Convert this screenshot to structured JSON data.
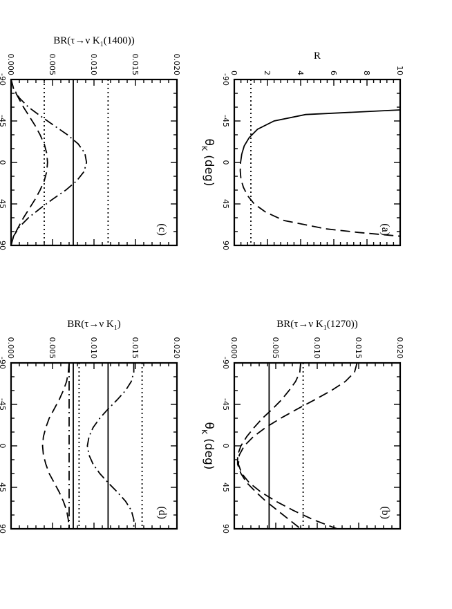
{
  "chart_data": [
    {
      "panel": "(a)",
      "type": "line",
      "xlabel": "θ",
      "xlabel_sub": "K",
      "xlabel_unit": "(deg)",
      "ylabel": "R",
      "xlim": [
        -90,
        90
      ],
      "ylim": [
        0,
        10
      ],
      "xticks": [
        -90,
        -45,
        0,
        45,
        90
      ],
      "yticks": [
        0,
        2,
        4,
        6,
        8,
        10
      ],
      "ytick_labels": [
        "0",
        "2",
        "4",
        "6",
        "8",
        "10"
      ],
      "series": [
        {
          "style": "solid",
          "x": [
            -57,
            -52,
            -45,
            -36,
            -27,
            -18,
            -9
          ],
          "y": [
            10,
            4.3,
            2.4,
            1.4,
            0.9,
            0.6,
            0.45
          ]
        },
        {
          "style": "longdash",
          "x": [
            -9,
            0,
            9,
            18,
            27,
            36,
            45,
            54,
            63,
            72,
            76,
            80
          ],
          "y": [
            0.45,
            0.38,
            0.36,
            0.4,
            0.55,
            0.8,
            1.2,
            1.9,
            3.0,
            5.5,
            7.5,
            10
          ]
        },
        {
          "style": "dotted",
          "x": [
            -90,
            90
          ],
          "y": [
            1,
            1
          ]
        }
      ]
    },
    {
      "panel": "(b)",
      "type": "line",
      "xlabel": "θ",
      "xlabel_sub": "K",
      "xlabel_unit": "(deg)",
      "ylabel": "BR(τ→ν K",
      "ylabel_sub": "1",
      "ylabel_tail": "(1270))",
      "xlim": [
        -90,
        90
      ],
      "ylim": [
        0,
        0.02
      ],
      "xticks": [
        -90,
        -45,
        0,
        45,
        90
      ],
      "yticks": [
        0,
        0.005,
        0.01,
        0.015,
        0.02
      ],
      "ytick_labels": [
        "0.000",
        "0.005",
        "0.010",
        "0.015",
        "0.020"
      ],
      "series": [
        {
          "style": "solid",
          "x": [
            -90,
            90
          ],
          "y": [
            0.0042,
            0.0042
          ]
        },
        {
          "style": "dotted",
          "x": [
            -90,
            90
          ],
          "y": [
            0.0083,
            0.0083
          ]
        },
        {
          "style": "longdash",
          "x": [
            -90,
            -80,
            -70,
            -60,
            -50,
            -40,
            -30,
            -20,
            -10,
            0,
            10,
            20,
            30,
            40,
            50,
            60,
            70,
            80,
            90
          ],
          "y": [
            0.0148,
            0.0145,
            0.0134,
            0.0117,
            0.0097,
            0.0076,
            0.0056,
            0.0038,
            0.0023,
            0.0012,
            0.0006,
            0.0005,
            0.0009,
            0.0018,
            0.0032,
            0.005,
            0.0071,
            0.0095,
            0.0124
          ]
        },
        {
          "style": "longdash",
          "x": [
            -90,
            -80,
            -70,
            -60,
            -50,
            -40,
            -30,
            -20,
            -10,
            0,
            10,
            20,
            30,
            40,
            50,
            60,
            70,
            80,
            90
          ],
          "y": [
            0.008,
            0.0079,
            0.0074,
            0.0066,
            0.0057,
            0.0046,
            0.0034,
            0.0024,
            0.0015,
            0.0008,
            0.0004,
            0.0004,
            0.0008,
            0.0015,
            0.0026,
            0.0038,
            0.0052,
            0.0066,
            0.008
          ]
        }
      ]
    },
    {
      "panel": "(c)",
      "type": "line",
      "xlabel": "θ",
      "xlabel_sub": "K",
      "xlabel_unit": "(deg)",
      "ylabel": "BR(τ→ν K",
      "ylabel_sub": "1",
      "ylabel_tail": "(1400))",
      "xlim": [
        -90,
        90
      ],
      "ylim": [
        0,
        0.02
      ],
      "xticks": [
        -90,
        -45,
        0,
        45,
        90
      ],
      "yticks": [
        0,
        0.005,
        0.01,
        0.015,
        0.02
      ],
      "ytick_labels": [
        "0.000",
        "0.005",
        "0.010",
        "0.015",
        "0.020"
      ],
      "series": [
        {
          "style": "solid",
          "x": [
            -90,
            90
          ],
          "y": [
            0.0075,
            0.0075
          ]
        },
        {
          "style": "dotted",
          "x": [
            -90,
            90
          ],
          "y": [
            0.0117,
            0.0117
          ]
        },
        {
          "style": "dotted",
          "x": [
            -90,
            90
          ],
          "y": [
            0.004,
            0.004
          ]
        },
        {
          "style": "dashdot",
          "x": [
            -90,
            -80,
            -70,
            -60,
            -50,
            -40,
            -30,
            -20,
            -10,
            0,
            10,
            20,
            30,
            40,
            50,
            60,
            70,
            80,
            90
          ],
          "y": [
            0.0,
            0.0003,
            0.001,
            0.0021,
            0.0036,
            0.0052,
            0.0068,
            0.0081,
            0.0089,
            0.0091,
            0.0088,
            0.0079,
            0.0066,
            0.005,
            0.0035,
            0.0021,
            0.001,
            0.0003,
            0.0
          ]
        },
        {
          "style": "longdash",
          "x": [
            -90,
            -80,
            -70,
            -60,
            -50,
            -40,
            -30,
            -20,
            -10,
            0,
            10,
            20,
            30,
            40,
            50,
            60,
            70,
            80,
            90
          ],
          "y": [
            0.0,
            0.0003,
            0.0009,
            0.0015,
            0.0022,
            0.0029,
            0.0035,
            0.004,
            0.0043,
            0.0044,
            0.0043,
            0.004,
            0.0035,
            0.0029,
            0.0022,
            0.0015,
            0.0009,
            0.0003,
            0.0
          ]
        }
      ]
    },
    {
      "panel": "(d)",
      "type": "line",
      "xlabel": "θ",
      "xlabel_sub": "K",
      "xlabel_unit": "(deg)",
      "ylabel": "BR(τ→ν K",
      "ylabel_sub": "1",
      "ylabel_tail": ")",
      "xlim": [
        -90,
        90
      ],
      "ylim": [
        0,
        0.02
      ],
      "xticks": [
        -90,
        -45,
        0,
        45,
        90
      ],
      "yticks": [
        0,
        0.005,
        0.01,
        0.015,
        0.02
      ],
      "ytick_labels": [
        "0.000",
        "0.005",
        "0.010",
        "0.015",
        "0.020"
      ],
      "series": [
        {
          "style": "solid",
          "x": [
            -90,
            90
          ],
          "y": [
            0.0117,
            0.0117
          ]
        },
        {
          "style": "solid",
          "x": [
            -90,
            90
          ],
          "y": [
            0.0075,
            0.0075
          ]
        },
        {
          "style": "dotted",
          "x": [
            -90,
            90
          ],
          "y": [
            0.0158,
            0.0158
          ]
        },
        {
          "style": "dotted",
          "x": [
            -90,
            90
          ],
          "y": [
            0.0082,
            0.0082
          ]
        },
        {
          "style": "dashdot",
          "x": [
            -90,
            90
          ],
          "y": [
            0.007,
            0.007
          ]
        },
        {
          "style": "dashdot",
          "x": [
            -90,
            -80,
            -70,
            -60,
            -50,
            -40,
            -30,
            -20,
            -10,
            0,
            10,
            20,
            30,
            40,
            50,
            60,
            70,
            80,
            90
          ],
          "y": [
            0.0148,
            0.0148,
            0.0145,
            0.0138,
            0.0128,
            0.0117,
            0.0107,
            0.0099,
            0.0094,
            0.0092,
            0.0094,
            0.0099,
            0.0107,
            0.0117,
            0.0128,
            0.0138,
            0.0145,
            0.0148,
            0.0148
          ]
        },
        {
          "style": "longdash",
          "x": [
            -90,
            -80,
            -70,
            -60,
            -50,
            -40,
            -30,
            -20,
            -10,
            0,
            10,
            20,
            30,
            40,
            50,
            60,
            70,
            80,
            90
          ],
          "y": [
            0.007,
            0.0069,
            0.0067,
            0.0063,
            0.0058,
            0.0052,
            0.0046,
            0.0042,
            0.0039,
            0.0038,
            0.0039,
            0.0042,
            0.0046,
            0.0052,
            0.0058,
            0.0063,
            0.0067,
            0.0069,
            0.007
          ]
        }
      ]
    }
  ]
}
